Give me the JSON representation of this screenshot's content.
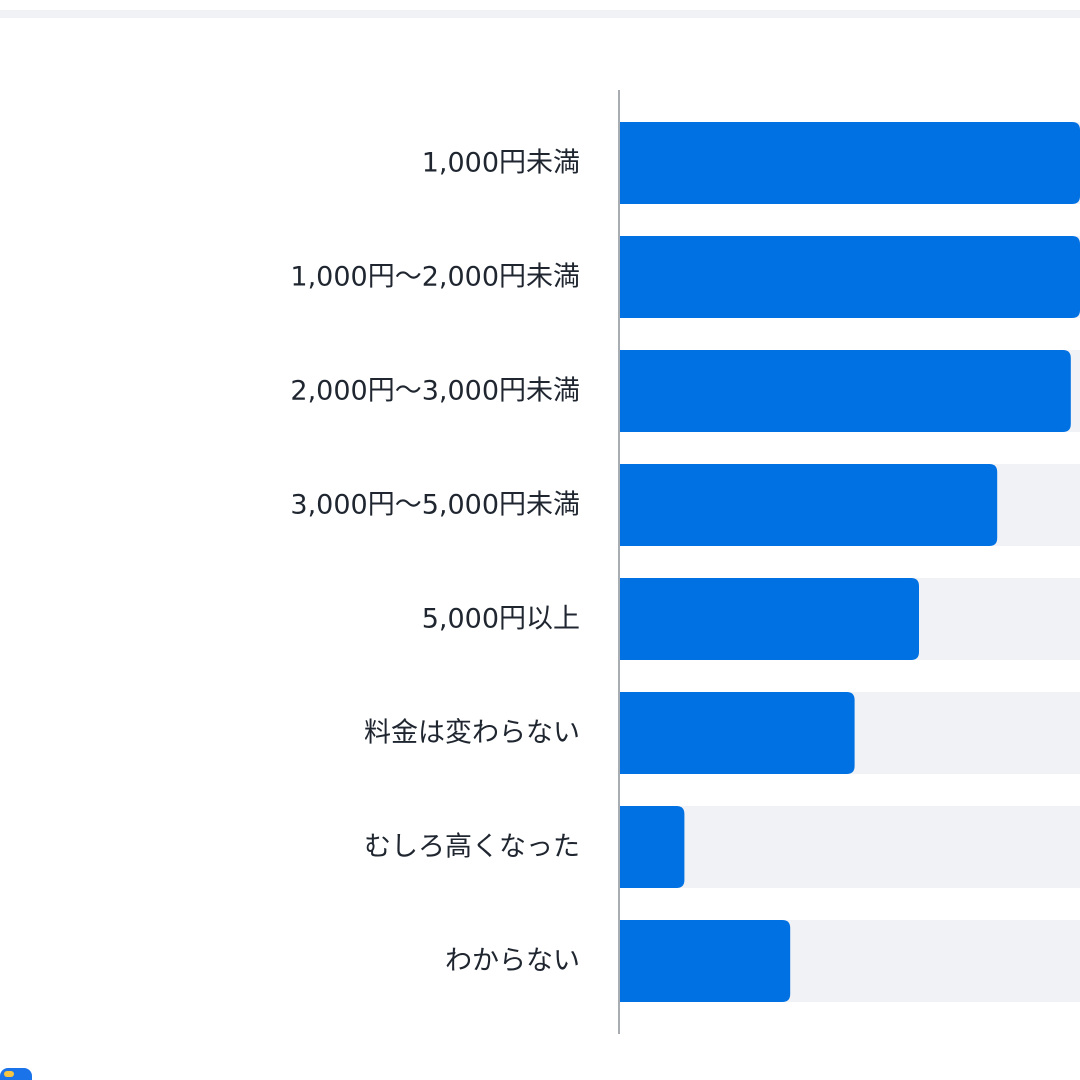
{
  "chart_data": {
    "type": "bar",
    "orientation": "horizontal",
    "categories": [
      "1,000円未満",
      "1,000円〜2,000円未満",
      "2,000円〜3,000円未満",
      "3,000円〜5,000円未満",
      "5,000円以上",
      "料金は変わらない",
      "むしろ高くなった",
      "わからない"
    ],
    "values": [
      100,
      100,
      98,
      82,
      65,
      51,
      14,
      37
    ],
    "xlim": [
      0,
      100
    ],
    "title": "",
    "xlabel": "",
    "ylabel": "",
    "grid": false,
    "legend": "none",
    "colors": {
      "bar": "#0071e3",
      "track": "#f0f2f5",
      "axis": "#a8adb4",
      "label": "#1f2630"
    }
  },
  "corner_icon": "badge-icon"
}
